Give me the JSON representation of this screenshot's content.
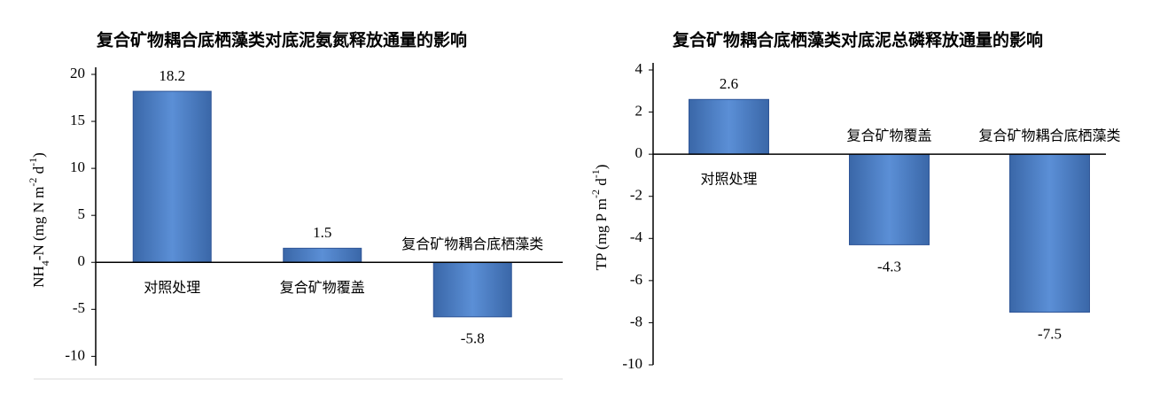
{
  "chart_data": [
    {
      "type": "bar",
      "title": "复合矿物耦合底栖藻类对底泥氨氮释放通量的影响",
      "y_label": [
        "NH",
        "4",
        "-N (mg N m",
        "-2",
        " d",
        "-1",
        ")"
      ],
      "y_label_scripts": [
        "normal",
        "sub",
        "normal",
        "super",
        "normal",
        "super",
        "normal"
      ],
      "categories": [
        "对照处理",
        "复合矿物覆盖",
        "复合矿物耦合底栖藻类"
      ],
      "values": [
        18.2,
        1.5,
        -5.8
      ],
      "color": "#4f81bd",
      "ylim": [
        -11,
        20
      ],
      "yticks": [
        -10,
        -5,
        0,
        5,
        10,
        15,
        20
      ],
      "grid": false
    },
    {
      "type": "bar",
      "title": "复合矿物耦合底栖藻类对底泥总磷释放通量的影响",
      "y_label": [
        "TP (mg P m",
        "-2",
        " d",
        "-1",
        ")"
      ],
      "y_label_scripts": [
        "normal",
        "super",
        "normal",
        "super",
        "normal"
      ],
      "categories": [
        "对照处理",
        "复合矿物覆盖",
        "复合矿物耦合底栖藻类"
      ],
      "values": [
        2.6,
        -4.3,
        -7.5
      ],
      "color": "#4f81bd",
      "ylim": [
        -10,
        4
      ],
      "yticks": [
        -10,
        -8,
        -6,
        -4,
        -2,
        0,
        2,
        4
      ],
      "grid": false
    }
  ]
}
